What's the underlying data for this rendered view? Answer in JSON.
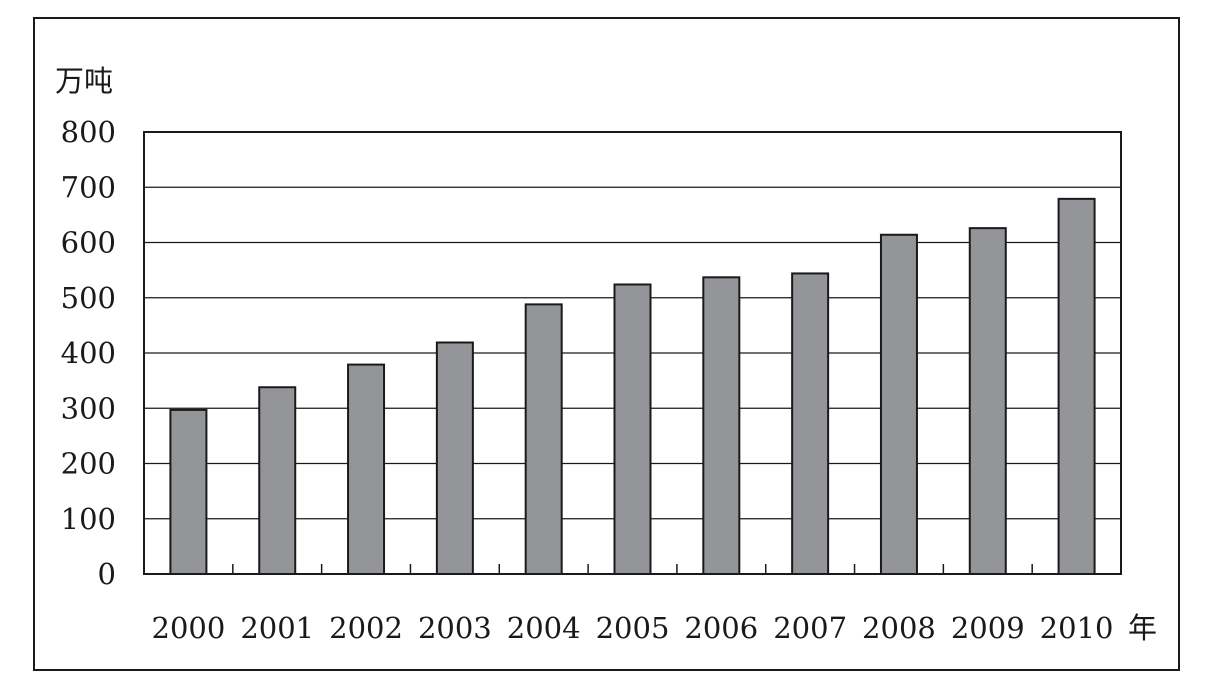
{
  "chart_data": {
    "type": "bar",
    "title": "",
    "ylabel": "万吨",
    "xlabel": "年",
    "categories": [
      "2000",
      "2001",
      "2002",
      "2003",
      "2004",
      "2005",
      "2006",
      "2007",
      "2008",
      "2009",
      "2010"
    ],
    "values": [
      297,
      338,
      379,
      419,
      488,
      524,
      537,
      544,
      614,
      626,
      679
    ],
    "ylim": [
      0,
      800
    ],
    "yticks": [
      0,
      100,
      200,
      300,
      400,
      500,
      600,
      700,
      800
    ],
    "grid": true,
    "colors": {
      "bar": "#939598",
      "stroke": "#1a1a1a"
    }
  }
}
